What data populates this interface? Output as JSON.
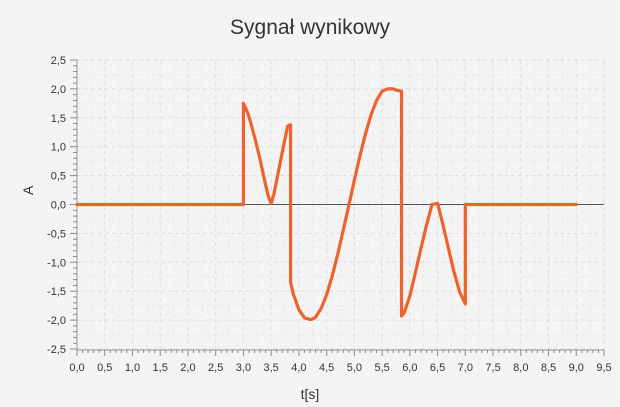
{
  "chart_data": {
    "type": "line",
    "title": "Sygnał wynikowy",
    "xlabel": "t[s]",
    "ylabel": "A",
    "xlim": [
      0.0,
      9.5
    ],
    "ylim": [
      -2.5,
      2.5
    ],
    "x_ticks": [
      "0,0",
      "0,5",
      "1,0",
      "1,5",
      "2,0",
      "2,5",
      "3,0",
      "3,5",
      "4,0",
      "4,5",
      "5,0",
      "5,5",
      "6,0",
      "6,5",
      "7,0",
      "7,5",
      "8,0",
      "8,5",
      "9,0",
      "9,5"
    ],
    "y_ticks": [
      "2,5",
      "2,0",
      "1,5",
      "1,0",
      "0,5",
      "0,0",
      "-0,5",
      "-1,0",
      "-1,5",
      "-2,0",
      "-2,5"
    ],
    "grid": true,
    "legend": "none",
    "series": [
      {
        "color": "#f0622d",
        "x": [
          0.0,
          1.0,
          2.0,
          3.0,
          3.0,
          3.05,
          3.1,
          3.15,
          3.2,
          3.25,
          3.3,
          3.35,
          3.4,
          3.45,
          3.5,
          3.55,
          3.6,
          3.65,
          3.7,
          3.75,
          3.8,
          3.85,
          3.85,
          3.9,
          4.0,
          4.1,
          4.2,
          4.25,
          4.3,
          4.4,
          4.5,
          4.6,
          4.7,
          4.8,
          4.9,
          5.0,
          5.1,
          5.2,
          5.3,
          5.4,
          5.5,
          5.6,
          5.7,
          5.75,
          5.8,
          5.85,
          5.85,
          5.9,
          6.0,
          6.1,
          6.2,
          6.3,
          6.4,
          6.5,
          6.6,
          6.7,
          6.8,
          6.9,
          7.0,
          7.0,
          8.0,
          9.0
        ],
        "y": [
          0.0,
          0.0,
          0.0,
          0.0,
          1.75,
          1.65,
          1.52,
          1.35,
          1.17,
          0.98,
          0.78,
          0.56,
          0.34,
          0.14,
          0.02,
          0.18,
          0.42,
          0.66,
          0.9,
          1.14,
          1.36,
          1.38,
          -1.35,
          -1.55,
          -1.82,
          -1.96,
          -1.99,
          -1.98,
          -1.95,
          -1.8,
          -1.56,
          -1.24,
          -0.86,
          -0.44,
          -0.02,
          0.42,
          0.84,
          1.22,
          1.55,
          1.8,
          1.96,
          2.0,
          2.0,
          1.98,
          1.97,
          1.96,
          -1.93,
          -1.87,
          -1.58,
          -1.18,
          -0.76,
          -0.36,
          0.0,
          0.02,
          -0.36,
          -0.78,
          -1.18,
          -1.52,
          -1.72,
          0.0,
          0.0,
          0.0
        ]
      }
    ]
  }
}
